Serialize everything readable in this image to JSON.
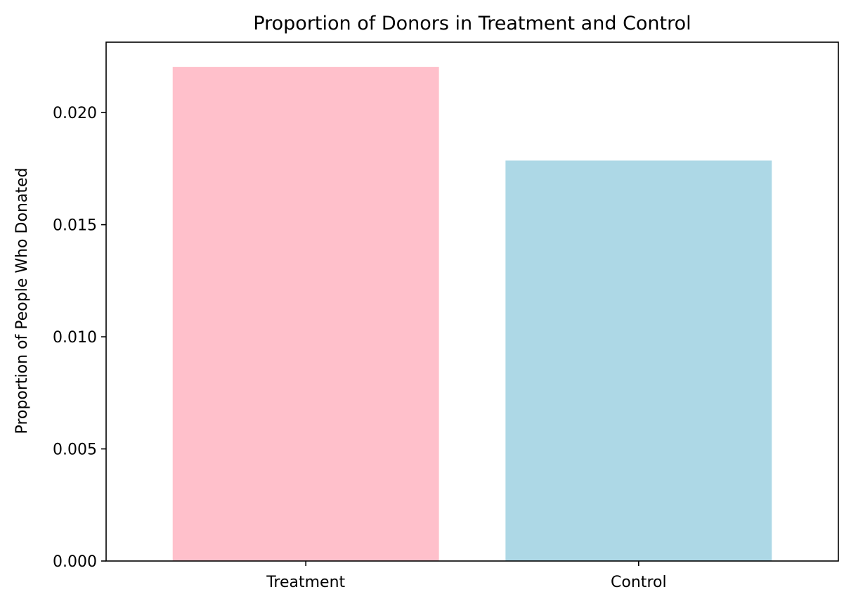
{
  "chart_data": {
    "type": "bar",
    "title": "Proportion of Donors in Treatment and Control",
    "xlabel": "",
    "ylabel": "Proportion of People Who Donated",
    "categories": [
      "Treatment",
      "Control"
    ],
    "values": [
      0.02204,
      0.01786
    ],
    "colors": [
      "#ffc0cb",
      "#add8e6"
    ],
    "ylim": [
      0,
      0.02314
    ],
    "yticks": [
      0.0,
      0.005,
      0.01,
      0.015,
      0.02
    ],
    "ytick_labels": [
      "0.000",
      "0.005",
      "0.010",
      "0.015",
      "0.020"
    ],
    "grid": false,
    "legend": false
  }
}
